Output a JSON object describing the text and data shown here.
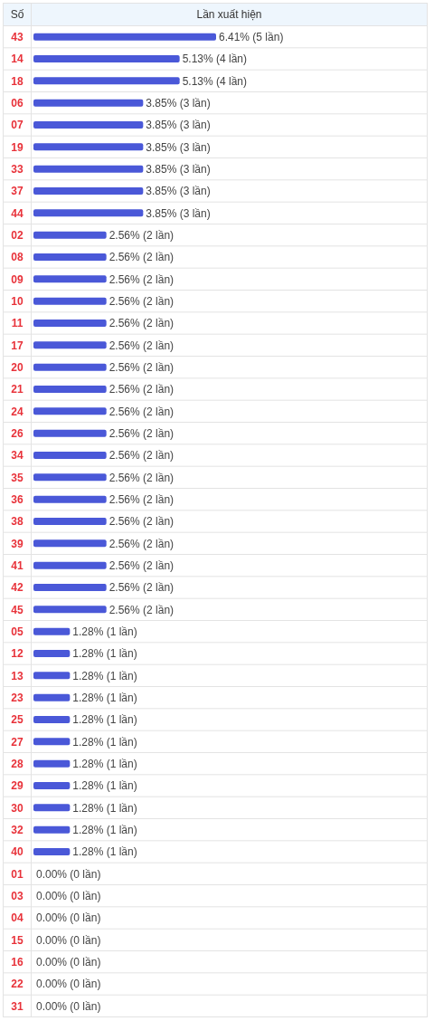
{
  "chart_data": {
    "type": "bar",
    "orientation": "horizontal",
    "xlabel": "Lần xuất hiện",
    "ylabel": "Số",
    "categories": [
      "43",
      "14",
      "18",
      "06",
      "07",
      "19",
      "33",
      "37",
      "44",
      "02",
      "08",
      "09",
      "10",
      "11",
      "17",
      "20",
      "21",
      "24",
      "26",
      "34",
      "35",
      "36",
      "38",
      "39",
      "41",
      "42",
      "45",
      "05",
      "12",
      "13",
      "23",
      "25",
      "27",
      "28",
      "29",
      "30",
      "32",
      "40",
      "01",
      "03",
      "04",
      "15",
      "16",
      "22",
      "31"
    ],
    "values": [
      6.41,
      5.13,
      5.13,
      3.85,
      3.85,
      3.85,
      3.85,
      3.85,
      3.85,
      2.56,
      2.56,
      2.56,
      2.56,
      2.56,
      2.56,
      2.56,
      2.56,
      2.56,
      2.56,
      2.56,
      2.56,
      2.56,
      2.56,
      2.56,
      2.56,
      2.56,
      2.56,
      1.28,
      1.28,
      1.28,
      1.28,
      1.28,
      1.28,
      1.28,
      1.28,
      1.28,
      1.28,
      1.28,
      0,
      0,
      0,
      0,
      0,
      0,
      0
    ],
    "value_labels": [
      "6.41% (5 lần)",
      "5.13% (4 lần)",
      "5.13% (4 lần)",
      "3.85% (3 lần)",
      "3.85% (3 lần)",
      "3.85% (3 lần)",
      "3.85% (3 lần)",
      "3.85% (3 lần)",
      "3.85% (3 lần)",
      "2.56% (2 lần)",
      "2.56% (2 lần)",
      "2.56% (2 lần)",
      "2.56% (2 lần)",
      "2.56% (2 lần)",
      "2.56% (2 lần)",
      "2.56% (2 lần)",
      "2.56% (2 lần)",
      "2.56% (2 lần)",
      "2.56% (2 lần)",
      "2.56% (2 lần)",
      "2.56% (2 lần)",
      "2.56% (2 lần)",
      "2.56% (2 lần)",
      "2.56% (2 lần)",
      "2.56% (2 lần)",
      "2.56% (2 lần)",
      "2.56% (2 lần)",
      "1.28% (1 lần)",
      "1.28% (1 lần)",
      "1.28% (1 lần)",
      "1.28% (1 lần)",
      "1.28% (1 lần)",
      "1.28% (1 lần)",
      "1.28% (1 lần)",
      "1.28% (1 lần)",
      "1.28% (1 lần)",
      "1.28% (1 lần)",
      "1.28% (1 lần)",
      "0.00% (0 lần)",
      "0.00% (0 lần)",
      "0.00% (0 lần)",
      "0.00% (0 lần)",
      "0.00% (0 lần)",
      "0.00% (0 lần)",
      "0.00% (0 lần)"
    ],
    "color": "#4a58d8"
  }
}
